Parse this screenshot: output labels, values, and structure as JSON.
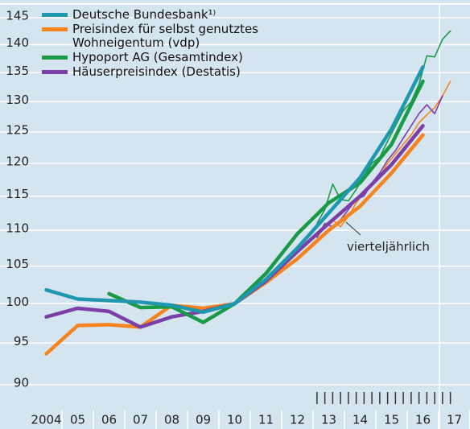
{
  "chart_data": {
    "type": "line",
    "log_scale": true,
    "grid": true,
    "legend_position": "top-left",
    "annotation": "vierteljährlich",
    "x": [
      2004,
      2005,
      2006,
      2007,
      2008,
      2009,
      2010,
      2011,
      2012,
      2013,
      2014,
      2015,
      2016
    ],
    "x_quarterly": [
      2012.625,
      2012.875,
      2013.125,
      2013.375,
      2013.625,
      2013.875,
      2014.125,
      2014.375,
      2014.625,
      2014.875,
      2015.125,
      2015.375,
      2015.625,
      2015.875,
      2016.125,
      2016.375,
      2016.625,
      2016.875
    ],
    "xlim": [
      2003.5,
      2017.5
    ],
    "xticks": [
      {
        "value": 2004,
        "label": "2004"
      },
      {
        "value": 2005,
        "label": "05"
      },
      {
        "value": 2006,
        "label": "06"
      },
      {
        "value": 2007,
        "label": "07"
      },
      {
        "value": 2008,
        "label": "08"
      },
      {
        "value": 2009,
        "label": "09"
      },
      {
        "value": 2010,
        "label": "10"
      },
      {
        "value": 2011,
        "label": "11"
      },
      {
        "value": 2012,
        "label": "12"
      },
      {
        "value": 2013,
        "label": "13"
      },
      {
        "value": 2014,
        "label": "14"
      },
      {
        "value": 2015,
        "label": "15"
      },
      {
        "value": 2016,
        "label": "16"
      },
      {
        "value": 2017,
        "label": "17"
      }
    ],
    "ylim": [
      90,
      145
    ],
    "yticks": [
      90,
      95,
      100,
      105,
      110,
      115,
      120,
      125,
      130,
      135,
      140,
      145
    ],
    "series": [
      {
        "name": "Deutsche Bundesbank¹⁾",
        "color": "#1f97ae",
        "values": [
          101.8,
          100.6,
          100.4,
          100.2,
          99.8,
          98.9,
          100,
          103.2,
          107.5,
          112.5,
          117.8,
          125.5,
          136
        ]
      },
      {
        "name": "Preisindex für selbst genutztes Wohneigentum (vdp)",
        "color": "#f5841f",
        "values": [
          93.7,
          97.2,
          97.3,
          97.0,
          99.8,
          99.4,
          100,
          102.8,
          106,
          110,
          113.5,
          118.5,
          124.5
        ],
        "quarterly_values": [
          109,
          110.5,
          111.5,
          110.5,
          112,
          114,
          115.5,
          117,
          118,
          120,
          121.5,
          123,
          124.5,
          126.5,
          127.8,
          129,
          131,
          133.5
        ]
      },
      {
        "name": "Hypoport AG (Gesamtindex)",
        "color": "#1a9a48",
        "values": [
          null,
          null,
          101.3,
          99.5,
          99.6,
          97.6,
          100,
          104,
          109.5,
          114,
          117,
          123,
          133.5
        ],
        "quarterly_values": [
          111,
          113,
          116.8,
          114.5,
          114.3,
          116,
          118,
          120,
          121,
          123.5,
          126,
          128.5,
          130,
          133,
          138,
          137.8,
          141,
          142.5
        ]
      },
      {
        "name": "Häuserpreisindex (Destatis)",
        "color": "#7b3fa8",
        "values": [
          98.3,
          99.4,
          99.0,
          97.0,
          98.3,
          99.0,
          100,
          103,
          107,
          111,
          115,
          119.8,
          126
        ],
        "quarterly_values": [
          109,
          111,
          110.5,
          111.5,
          113,
          114.5,
          115,
          117,
          118.5,
          120.5,
          122,
          124,
          126,
          128,
          129.5,
          128,
          131,
          null
        ]
      }
    ]
  }
}
